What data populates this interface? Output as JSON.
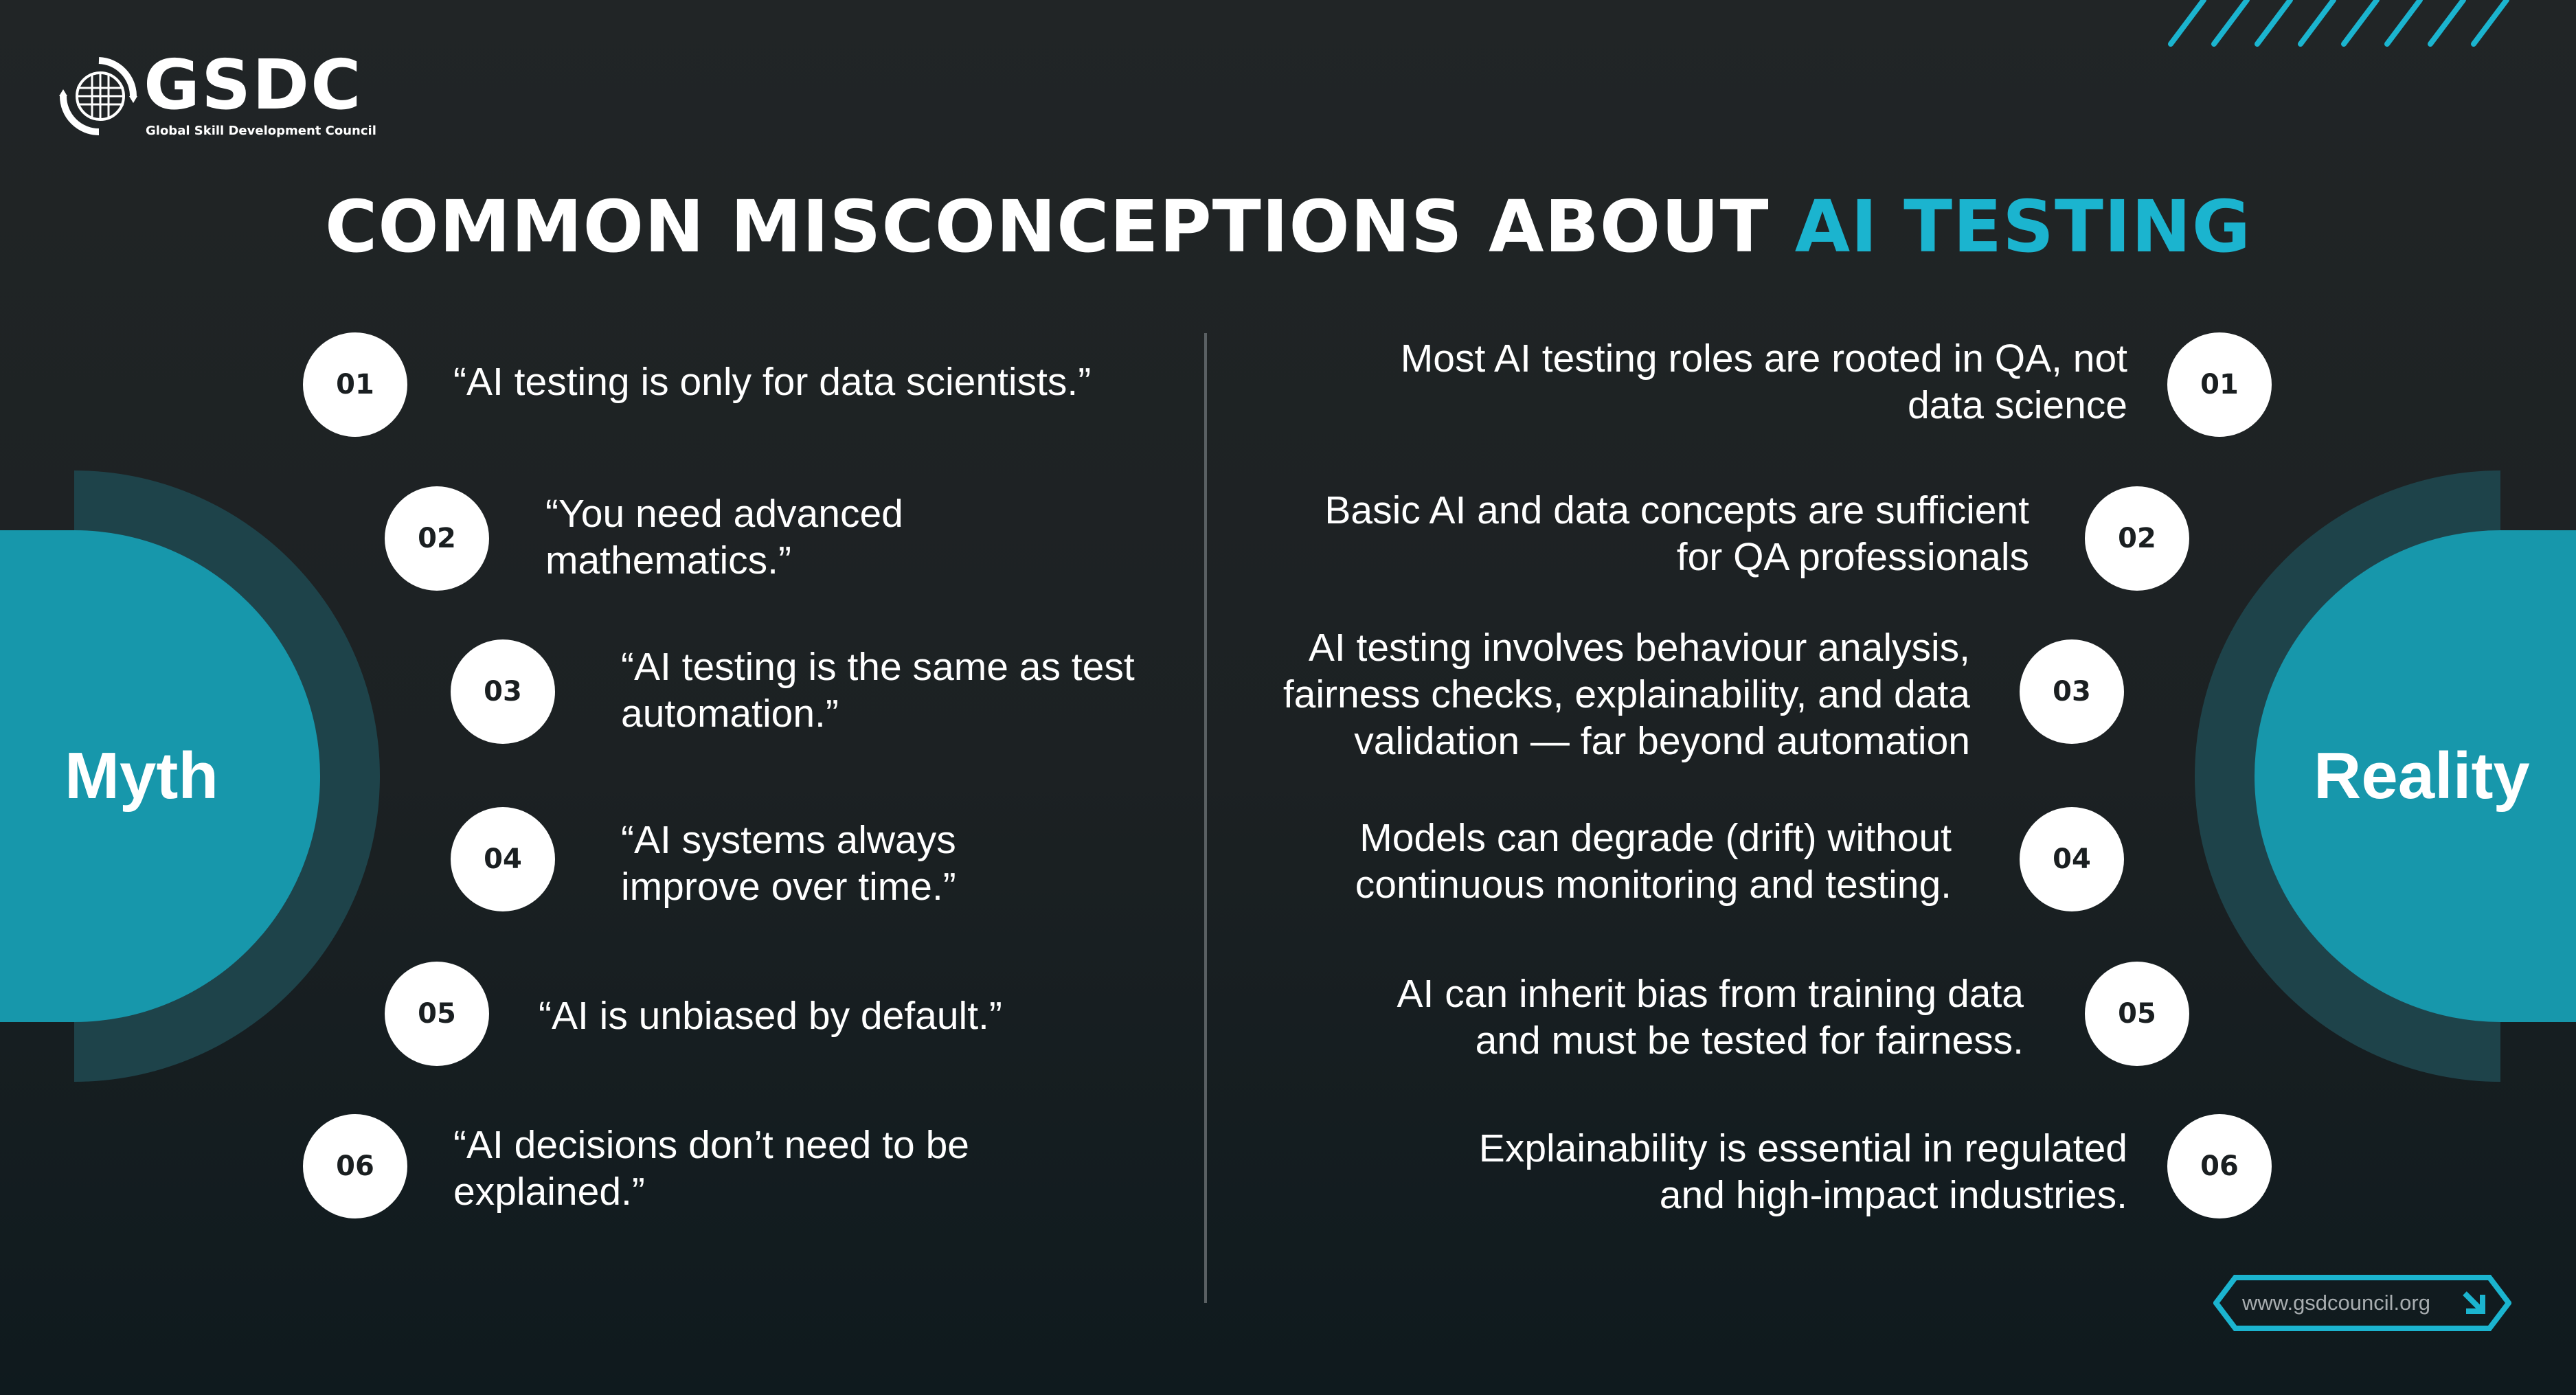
{
  "logo": {
    "name": "GSDC",
    "subtitle": "Global Skill Development Council"
  },
  "title": {
    "main": "COMMON MISCONCEPTIONS ABOUT ",
    "accent": "AI TESTING"
  },
  "colors": {
    "accent": "#1bb4cf",
    "teal": "#1797ab",
    "ring": "#1e434a",
    "background": "#1f2324"
  },
  "myth": {
    "label": "Myth",
    "items": [
      {
        "num": "01",
        "text": "“AI testing is only for data scientists.”"
      },
      {
        "num": "02",
        "text": "“You need advanced mathematics.”"
      },
      {
        "num": "03",
        "text": "“AI testing is the same as test automation.”"
      },
      {
        "num": "04",
        "text": "“AI systems always improve over time.”"
      },
      {
        "num": "05",
        "text": "“AI is unbiased by default.”"
      },
      {
        "num": "06",
        "text": "“AI decisions don’t need to be explained.”"
      }
    ]
  },
  "reality": {
    "label": "Reality",
    "items": [
      {
        "num": "01",
        "text": "Most AI testing roles are rooted in QA, not data science"
      },
      {
        "num": "02",
        "text": "Basic AI and data concepts are sufficient for QA professionals"
      },
      {
        "num": "03",
        "text": "AI testing involves behaviour analysis, fairness checks, explainability, and data validation — far beyond automation"
      },
      {
        "num": "04",
        "text": "Models can degrade (drift) without continuous monitoring and testing."
      },
      {
        "num": "05",
        "text": "AI can inherit bias from training data and must be tested for fairness."
      },
      {
        "num": "06",
        "text": "Explainability is essential in regulated and high-impact industries."
      }
    ]
  },
  "footer": {
    "url": "www.gsdcouncil.org",
    "icon": "arrow-down-right-icon"
  }
}
